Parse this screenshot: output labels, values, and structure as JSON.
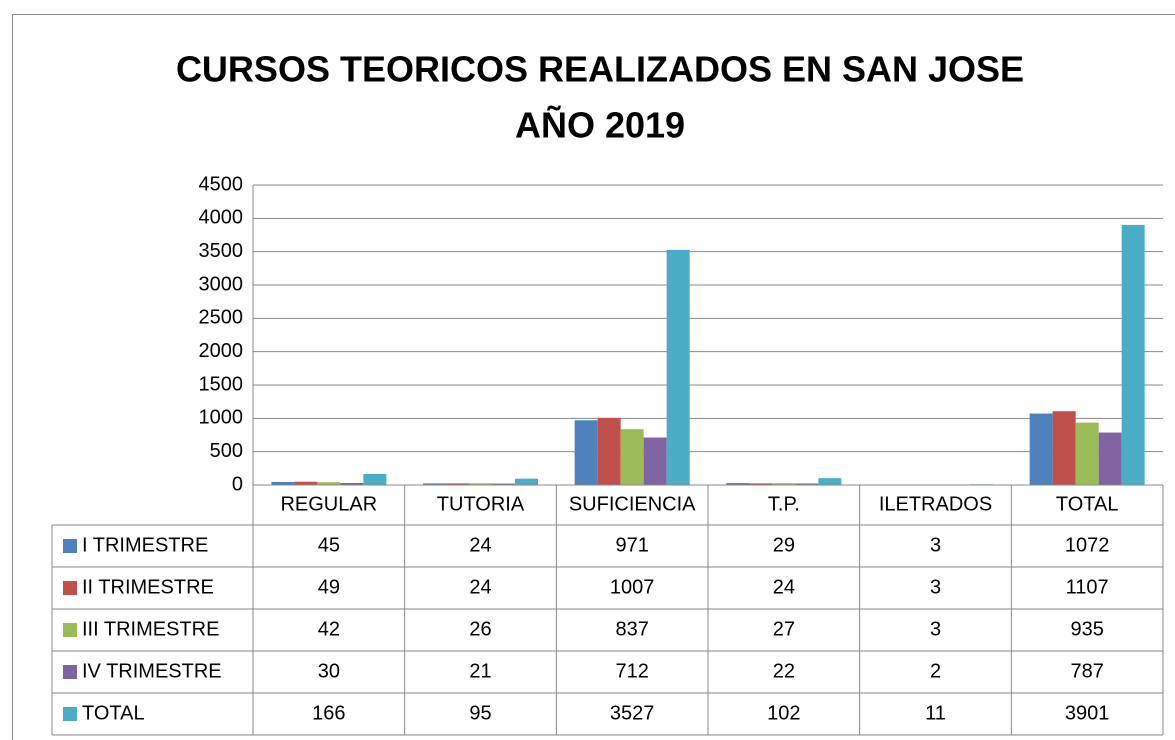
{
  "chart_data": {
    "type": "bar",
    "title": [
      "CURSOS TEORICOS REALIZADOS EN SAN JOSE",
      "AÑO 2019"
    ],
    "categories": [
      "REGULAR",
      "TUTORIA",
      "SUFICIENCIA",
      "T.P.",
      "ILETRADOS",
      "TOTAL"
    ],
    "series": [
      {
        "name": "I TRIMESTRE",
        "color": "#4f81bd",
        "values": [
          45,
          24,
          971,
          29,
          3,
          1072
        ]
      },
      {
        "name": "II TRIMESTRE",
        "color": "#c0504d",
        "values": [
          49,
          24,
          1007,
          24,
          3,
          1107
        ]
      },
      {
        "name": "III TRIMESTRE",
        "color": "#9bbb59",
        "values": [
          42,
          26,
          837,
          27,
          3,
          935
        ]
      },
      {
        "name": "IV TRIMESTRE",
        "color": "#8064a2",
        "values": [
          30,
          21,
          712,
          22,
          2,
          787
        ]
      },
      {
        "name": "TOTAL",
        "color": "#4bacc6",
        "values": [
          166,
          95,
          3527,
          102,
          11,
          3901
        ]
      }
    ],
    "ylim": [
      0,
      4500
    ],
    "yticks": [
      0,
      500,
      1000,
      1500,
      2000,
      2500,
      3000,
      3500,
      4000,
      4500
    ],
    "grid": true
  }
}
